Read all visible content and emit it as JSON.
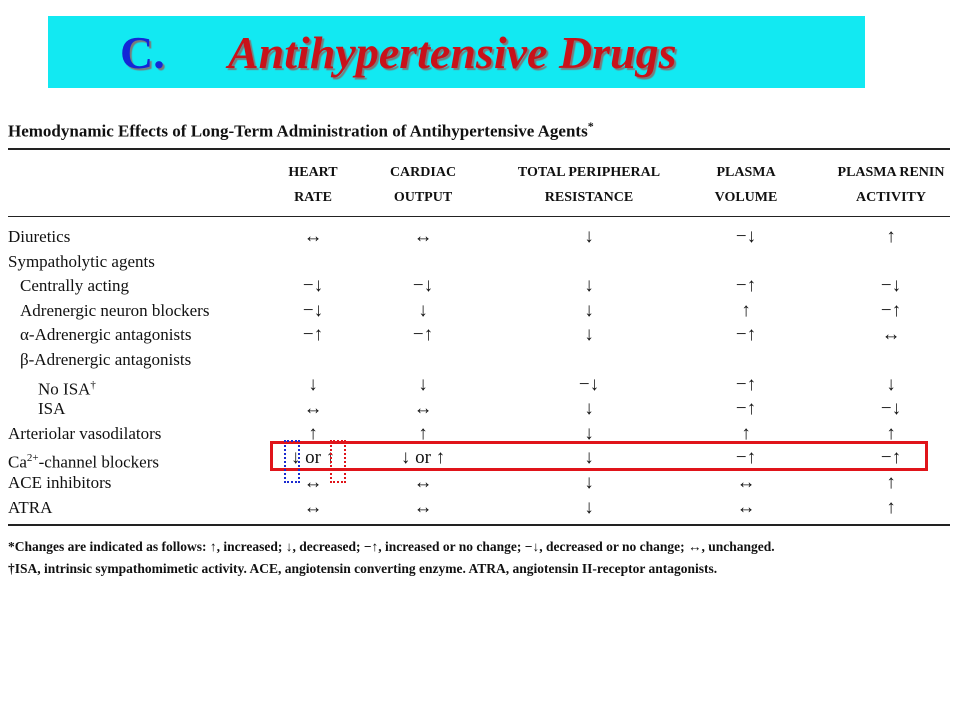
{
  "banner": {
    "letter": "C.",
    "title": "Antihypertensive Drugs"
  },
  "table": {
    "title": "Hemodynamic Effects of Long-Term Administration of Antihypertensive Agents",
    "title_mark": "*",
    "headers": [
      {
        "line1": "HEART",
        "line2": "RATE"
      },
      {
        "line1": "CARDIAC",
        "line2": "OUTPUT"
      },
      {
        "line1": "TOTAL PERIPHERAL",
        "line2": "RESISTANCE"
      },
      {
        "line1": "PLASMA",
        "line2": "VOLUME"
      },
      {
        "line1": "PLASMA RENIN",
        "line2": "ACTIVITY"
      }
    ],
    "rows": [
      {
        "label": "Diuretics",
        "values": [
          "↔",
          "↔",
          "↓",
          "−↓",
          "↑"
        ]
      },
      {
        "label": "Sympatholytic agents",
        "values": [
          "",
          "",
          "",
          "",
          ""
        ]
      },
      {
        "label": "Centrally acting",
        "values": [
          "−↓",
          "−↓",
          "↓",
          "−↑",
          "−↓"
        ]
      },
      {
        "label": "Adrenergic neuron blockers",
        "values": [
          "−↓",
          "↓",
          "↓",
          "↑",
          "−↑"
        ]
      },
      {
        "label": "α-Adrenergic antagonists",
        "values": [
          "−↑",
          "−↑",
          "↓",
          "−↑",
          "↔"
        ]
      },
      {
        "label": "β-Adrenergic antagonists",
        "values": [
          "",
          "",
          "",
          "",
          ""
        ]
      },
      {
        "label": "No ISA",
        "label_mark": "†",
        "values": [
          "↓",
          "↓",
          "−↓",
          "−↑",
          "↓"
        ]
      },
      {
        "label": "ISA",
        "values": [
          "↔",
          "↔",
          "↓",
          "−↑",
          "−↓"
        ]
      },
      {
        "label": "Arteriolar vasodilators",
        "values": [
          "↑",
          "↑",
          "↓",
          "↑",
          "↑"
        ]
      },
      {
        "label": "Ca",
        "label_sup": "2+",
        "label_rest": "-channel blockers",
        "values": [
          "↓ or ↑",
          "↓ or ↑",
          "↓",
          "−↑",
          "−↑"
        ]
      },
      {
        "label": "ACE inhibitors",
        "values": [
          "↔",
          "↔",
          "↓",
          "↔",
          "↑"
        ]
      },
      {
        "label": "ATRA",
        "values": [
          "↔",
          "↔",
          "↓",
          "↔",
          "↑"
        ]
      }
    ],
    "footnotes": [
      "*Changes are indicated as follows: ↑, increased; ↓, decreased; −↑, increased or no change; −↓, decreased or no change; ↔, unchanged.",
      "†ISA, intrinsic sympathomimetic activity. ACE, angiotensin converting enzyme. ATRA, angiotensin II-receptor antagonists."
    ]
  },
  "colors": {
    "banner_bg": "#12e9f2",
    "banner_letter": "#1327d6",
    "banner_title": "#c8121a",
    "highlight_red": "#e0141a",
    "highlight_blue": "#1a2ad0"
  }
}
